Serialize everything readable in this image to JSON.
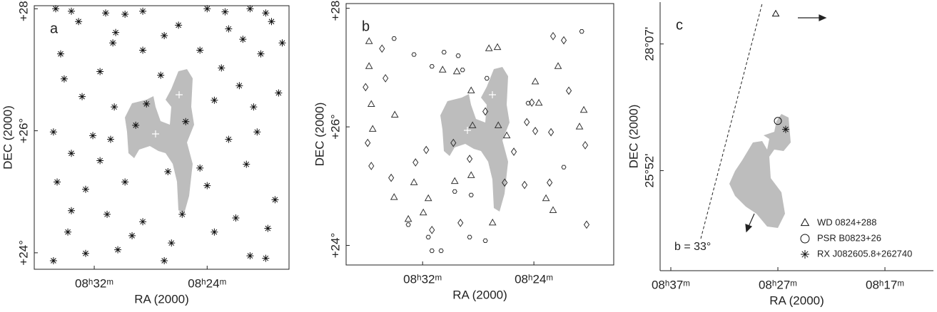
{
  "chart_data": [
    {
      "type": "scatter",
      "panel_label": "a",
      "xlabel": "RA (2000)",
      "ylabel": "DEC (2000)",
      "xlim": [
        36.25,
        18.2
      ],
      "ylim": [
        23.73,
        28.05
      ],
      "xticks": [
        {
          "value": 32,
          "label": "08ʰ32ᵐ"
        },
        {
          "value": 24,
          "label": "08ʰ24ᵐ"
        }
      ],
      "yticks": [
        {
          "value": 28,
          "label": "+28°"
        },
        {
          "value": 26,
          "label": "+26°"
        },
        {
          "value": 24,
          "label": "+24°"
        }
      ],
      "series": [
        {
          "marker": "asterisk",
          "color": "#111111",
          "x": [
            34.73,
            33.62,
            31.19,
            29.82,
            28.56,
            24.0,
            22.73,
            20.96,
            19.85,
            33.11,
            30.48,
            30.68,
            27.04,
            26.03,
            22.48,
            21.47,
            19.44,
            18.68,
            34.38,
            28.56,
            24.51,
            20.2,
            34.13,
            31.59,
            27.29,
            22.99,
            21.72,
            32.86,
            30.58,
            28.3,
            23.49,
            20.71,
            18.94,
            34.89,
            32.1,
            30.84,
            29.06,
            25.52,
            22.48,
            20.46,
            33.62,
            31.59,
            26.78,
            24.51,
            21.22,
            34.63,
            32.61,
            29.82,
            24.0,
            19.19,
            33.62,
            31.09,
            28.56,
            25.77,
            21.97,
            33.87,
            29.32,
            26.53,
            23.49,
            19.7,
            34.89,
            32.61,
            30.33,
            27.04,
            20.96,
            19.85
          ],
          "y": [
            28.0,
            27.96,
            27.93,
            27.91,
            27.96,
            28.0,
            27.95,
            28.0,
            27.93,
            27.79,
            27.61,
            27.44,
            27.56,
            27.73,
            27.67,
            27.5,
            27.79,
            27.44,
            27.26,
            27.32,
            27.32,
            27.26,
            26.85,
            26.97,
            26.91,
            27.03,
            26.74,
            26.56,
            26.39,
            26.44,
            26.5,
            26.39,
            26.62,
            25.98,
            25.92,
            25.86,
            26.09,
            26.15,
            25.86,
            25.98,
            25.63,
            25.51,
            25.33,
            25.39,
            25.45,
            25.16,
            25.04,
            25.16,
            25.1,
            24.87,
            24.69,
            24.63,
            24.51,
            24.63,
            24.57,
            24.34,
            24.28,
            24.16,
            24.34,
            24.4,
            23.87,
            23.99,
            24.05,
            23.87,
            23.95,
            23.91
          ]
        }
      ]
    },
    {
      "type": "scatter",
      "panel_label": "b",
      "xlabel": "RA (2000)",
      "ylabel": "DEC (2000)",
      "xlim": [
        37.5,
        18.26
      ],
      "ylim": [
        23.67,
        28.08
      ],
      "xticks": [
        {
          "value": 32,
          "label": "08ʰ32ᵐ"
        },
        {
          "value": 24,
          "label": "08ʰ24ᵐ"
        }
      ],
      "yticks": [
        {
          "value": 28,
          "label": "+28°"
        },
        {
          "value": 26,
          "label": "+26°"
        },
        {
          "value": 24,
          "label": "+24°"
        }
      ],
      "series": [
        {
          "marker": "triangle",
          "color": "#333333",
          "x": [
            35.85,
            35.85,
            35.69,
            35.59,
            34.0,
            34.05,
            32.62,
            31.59,
            30.56,
            29.54,
            28.51,
            28.41,
            27.23,
            26.62,
            26.56,
            25.95,
            23.9,
            23.64,
            23.13,
            22.26,
            20.41,
            20.72,
            22.62,
            33.03,
            31.95,
            29.69,
            28.51,
            26.97
          ],
          "y": [
            27.44,
            27.02,
            26.38,
            25.96,
            26.2,
            24.81,
            25.06,
            24.79,
            26.96,
            26.93,
            26.61,
            26.02,
            27.32,
            27.34,
            26.02,
            25.85,
            26.76,
            26.4,
            24.79,
            27.02,
            26.28,
            26.0,
            24.59,
            24.44,
            24.55,
            25.08,
            25.18,
            24.38
          ]
        },
        {
          "marker": "diamond",
          "color": "#333333",
          "x": [
            36.1,
            34.92,
            34.67,
            35.95,
            35.69,
            34.26,
            32.51,
            31.74,
            31.33,
            29.28,
            28.62,
            27.49,
            26.1,
            25.44,
            24.51,
            24.15,
            23.9,
            22.87,
            22.77,
            22.62,
            21.85,
            21.49,
            20.31,
            20.21,
            24.67,
            29.79
          ],
          "y": [
            26.67,
            27.32,
            26.82,
            25.73,
            25.34,
            25.14,
            25.4,
            25.61,
            24.26,
            24.38,
            25.46,
            26.26,
            25.06,
            25.58,
            26.08,
            26.41,
            25.93,
            25.06,
            25.91,
            27.53,
            27.46,
            26.61,
            25.69,
            24.35,
            25.02,
            25.73
          ]
        },
        {
          "marker": "hexagon",
          "color": "#333333",
          "x": [
            34.05,
            32.62,
            31.33,
            30.46,
            29.44,
            29.13,
            27.38,
            33.03,
            31.59,
            30.67,
            31.33,
            27.49,
            29.69,
            28.62,
            28.51,
            24.41,
            21.85,
            20.56
          ],
          "y": [
            27.49,
            27.22,
            27.02,
            27.26,
            27.2,
            26.96,
            26.82,
            24.35,
            24.14,
            23.91,
            23.91,
            24.08,
            24.91,
            24.14,
            24.85,
            26.4,
            25.32,
            27.61
          ]
        }
      ]
    },
    {
      "type": "scatter",
      "panel_label": "c",
      "xlabel": "RA (2000)",
      "ylabel": "DEC (2000)",
      "xlim": [
        38,
        12.47
      ],
      "ylim": [
        24.09,
        28.86
      ],
      "xticks": [
        {
          "value": 37,
          "label": "08ʰ37ᵐ"
        },
        {
          "value": 27,
          "label": "08ʰ27ᵐ"
        },
        {
          "value": 17,
          "label": "08ʰ17ᵐ"
        }
      ],
      "yticks": [
        {
          "value": 28.117,
          "label": "28°07'"
        },
        {
          "value": 25.867,
          "label": "25°52'"
        }
      ],
      "annotation": "b = 33°",
      "series": [
        {
          "name": "WD 0824+288",
          "marker": "triangle",
          "color": "#111111",
          "x": [
            27.2
          ],
          "y": [
            28.65
          ]
        },
        {
          "name": "PSR B0823+26",
          "marker": "circle",
          "color": "#111111",
          "x": [
            27.0
          ],
          "y": [
            26.75
          ]
        },
        {
          "name": "RX J082605.8+262740",
          "marker": "asterisk",
          "color": "#111111",
          "x": [
            26.27
          ],
          "y": [
            26.6
          ]
        }
      ]
    }
  ]
}
